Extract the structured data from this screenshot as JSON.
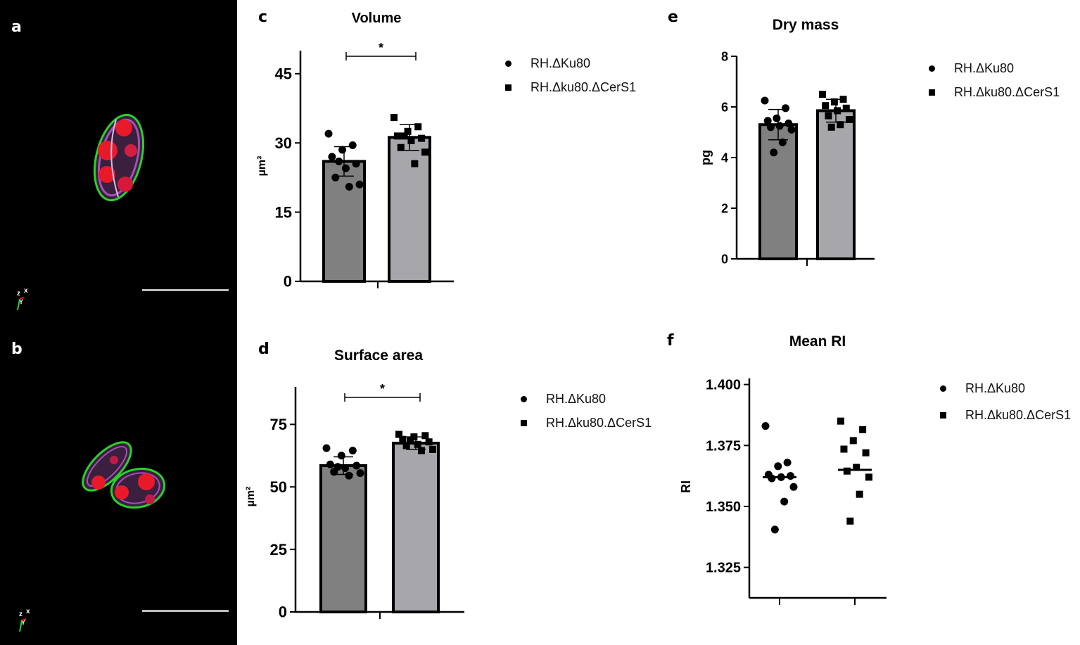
{
  "figure": {
    "panel_letters": {
      "a": "a",
      "b": "b",
      "c": "c",
      "d": "d",
      "e": "e",
      "f": "f"
    },
    "axis_marker_labels": {
      "z": "z",
      "x": "x",
      "y": "Y"
    }
  },
  "legend": {
    "series_1": "RH.ΔKu80",
    "series_2": "RH.Δku80.ΔCerS1"
  },
  "colors": {
    "bar_1": "#808080",
    "bar_2": "#a6a6ab",
    "marker": "#000000",
    "membrane": "#2bd12b",
    "nucleus": "#e81a2a",
    "cytoplasm": "#a54fb8"
  },
  "chart_data": [
    {
      "id": "c",
      "type": "bar",
      "title": "Volume",
      "ylabel": "µm³",
      "xlabel": "",
      "ylim": [
        0,
        50
      ],
      "yticks": [
        "0",
        "15",
        "30",
        "45"
      ],
      "ytick_values": [
        0,
        15,
        30,
        45
      ],
      "series": [
        {
          "name": "RH.ΔKu80",
          "marker": "circle",
          "value": 26,
          "sd": 3.2,
          "points": [
            32,
            29.5,
            28.5,
            27,
            25.5,
            24.5,
            22.5,
            21,
            20.5,
            26
          ]
        },
        {
          "name": "RH.Δku80.ΔCerS1",
          "marker": "square",
          "value": 31.2,
          "sd": 2.8,
          "points": [
            35.5,
            33.5,
            32.5,
            31.5,
            31,
            30.5,
            29,
            28,
            25.5,
            31.5
          ]
        }
      ],
      "significance": "*"
    },
    {
      "id": "d",
      "type": "bar",
      "title": "Surface area",
      "ylabel": "µm²",
      "xlabel": "",
      "ylim": [
        0,
        90
      ],
      "yticks": [
        "0",
        "25",
        "50",
        "75"
      ],
      "ytick_values": [
        0,
        25,
        50,
        75
      ],
      "series": [
        {
          "name": "RH.ΔKu80",
          "marker": "circle",
          "value": 58.5,
          "sd": 3.5,
          "points": [
            65.5,
            64.5,
            62.5,
            59,
            58.5,
            57.5,
            56,
            55.5,
            54.5,
            58
          ]
        },
        {
          "name": "RH.Δku80.ΔCerS1",
          "marker": "square",
          "value": 67.5,
          "sd": 2.5,
          "points": [
            71,
            70.5,
            70,
            69,
            68,
            67,
            66.5,
            65,
            64.5,
            68.5
          ]
        }
      ],
      "significance": "*"
    },
    {
      "id": "e",
      "type": "bar",
      "title": "Dry mass",
      "ylabel": "pg",
      "xlabel": "",
      "ylim": [
        0,
        8
      ],
      "yticks": [
        "0",
        "2",
        "4",
        "6",
        "8"
      ],
      "ytick_values": [
        0,
        2,
        4,
        6,
        8
      ],
      "series": [
        {
          "name": "RH.ΔKu80",
          "marker": "circle",
          "value": 5.3,
          "sd": 0.6,
          "points": [
            6.25,
            5.95,
            5.55,
            5.45,
            5.35,
            5.25,
            5.2,
            5.1,
            4.6,
            4.2
          ]
        },
        {
          "name": "RH.Δku80.ΔCerS1",
          "marker": "square",
          "value": 5.85,
          "sd": 0.45,
          "points": [
            6.5,
            6.3,
            6.2,
            6.05,
            5.95,
            5.85,
            5.65,
            5.5,
            5.3,
            5.2
          ]
        }
      ],
      "significance": ""
    },
    {
      "id": "f",
      "type": "scatter",
      "title": "Mean RI",
      "ylabel": "RI",
      "xlabel": "",
      "ylim": [
        1.3125,
        1.4025
      ],
      "yticks": [
        "1.325",
        "1.350",
        "1.375",
        "1.400"
      ],
      "ytick_values": [
        1.325,
        1.35,
        1.375,
        1.4
      ],
      "series": [
        {
          "name": "RH.ΔKu80",
          "marker": "circle",
          "value": 1.362,
          "points": [
            1.383,
            1.368,
            1.3665,
            1.363,
            1.3625,
            1.362,
            1.3615,
            1.358,
            1.352,
            1.3405
          ]
        },
        {
          "name": "RH.Δku80.ΔCerS1",
          "marker": "square",
          "value": 1.365,
          "points": [
            1.385,
            1.3815,
            1.377,
            1.3735,
            1.372,
            1.366,
            1.3645,
            1.362,
            1.355,
            1.344
          ]
        }
      ],
      "significance": ""
    }
  ]
}
